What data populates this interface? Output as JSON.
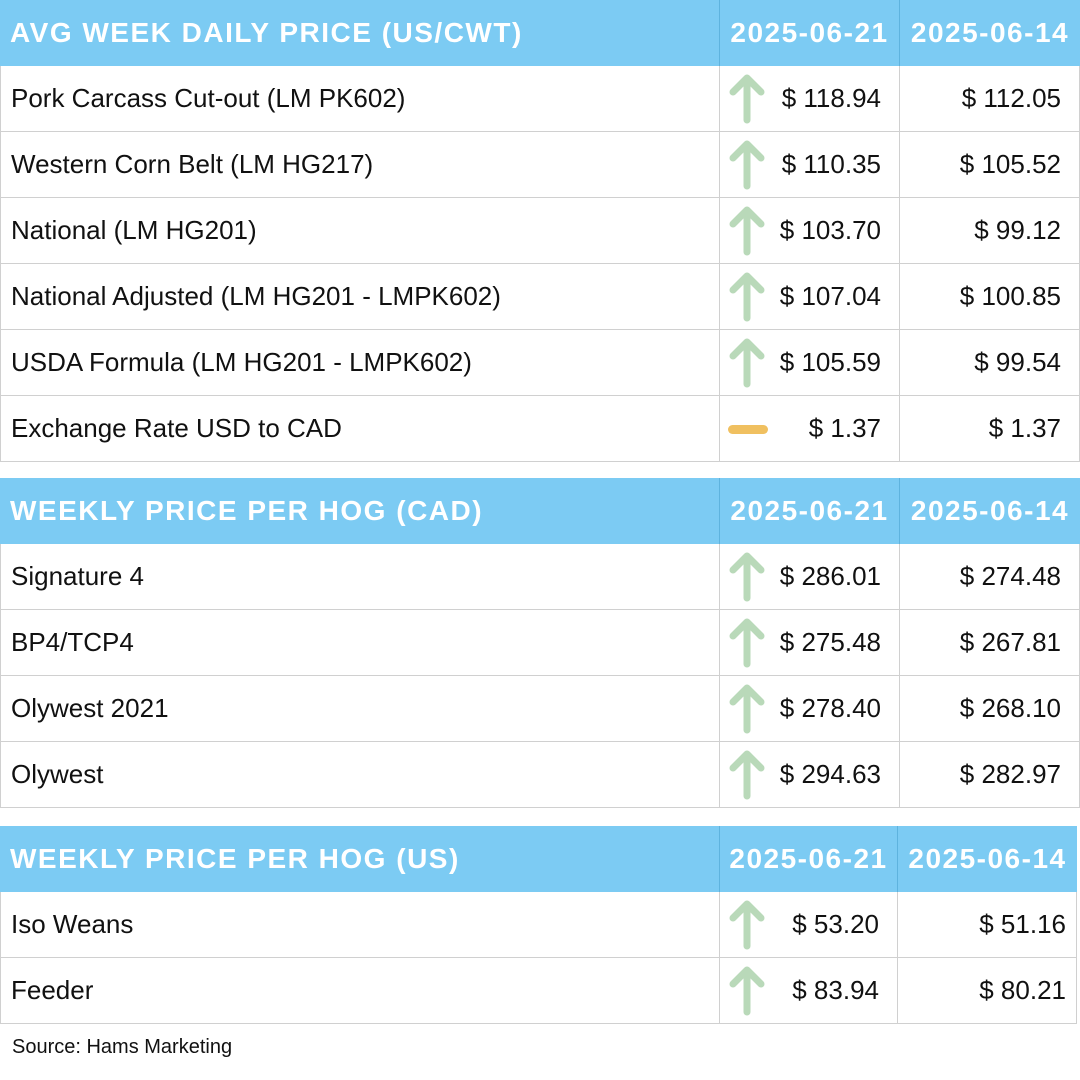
{
  "tables": [
    {
      "title": "AVG WEEK DAILY PRICE (US/CWT)",
      "date_current": "2025-06-21",
      "date_previous": "2025-06-14",
      "rows": [
        {
          "label": "Pork Carcass Cut-out (LM PK602)",
          "current": "$ 118.94",
          "previous": "$ 112.05",
          "trend": "up-arrow-icon"
        },
        {
          "label": "Western Corn Belt (LM HG217)",
          "current": "$ 110.35",
          "previous": "$ 105.52",
          "trend": "up-arrow-icon"
        },
        {
          "label": "National (LM HG201)",
          "current": "$ 103.70",
          "previous": "$ 99.12",
          "trend": "up-arrow-icon"
        },
        {
          "label": "National Adjusted (LM HG201 - LMPK602)",
          "current": "$ 107.04",
          "previous": "$ 100.85",
          "trend": "up-arrow-icon"
        },
        {
          "label": "USDA Formula (LM HG201 - LMPK602)",
          "current": "$ 105.59",
          "previous": "$ 99.54",
          "trend": "up-arrow-icon"
        },
        {
          "label": "Exchange Rate USD to CAD",
          "current": "$ 1.37",
          "previous": "$ 1.37",
          "trend": "flat-dash-icon"
        }
      ]
    },
    {
      "title": "WEEKLY PRICE PER HOG (CAD)",
      "date_current": "2025-06-21",
      "date_previous": "2025-06-14",
      "rows": [
        {
          "label": "Signature 4",
          "current": "$ 286.01",
          "previous": "$ 274.48",
          "trend": "up-arrow-icon"
        },
        {
          "label": "BP4/TCP4",
          "current": "$ 275.48",
          "previous": "$ 267.81",
          "trend": "up-arrow-icon"
        },
        {
          "label": "Olywest 2021",
          "current": "$ 278.40",
          "previous": "$ 268.10",
          "trend": "up-arrow-icon"
        },
        {
          "label": "Olywest",
          "current": "$ 294.63",
          "previous": "$ 282.97",
          "trend": "up-arrow-icon"
        }
      ]
    },
    {
      "title": "WEEKLY PRICE PER HOG (US)",
      "date_current": "2025-06-21",
      "date_previous": "2025-06-14",
      "rows": [
        {
          "label": "Iso Weans",
          "current": "$ 53.20",
          "previous": "$ 51.16",
          "trend": "up-arrow-icon"
        },
        {
          "label": "Feeder",
          "current": "$ 83.94",
          "previous": "$ 80.21",
          "trend": "up-arrow-icon"
        }
      ]
    }
  ],
  "colors": {
    "header_bg": "#7ccbf3",
    "up_arrow": "#b9d9b9",
    "flat_dash": "#f0c060"
  },
  "source": "Source: Hams Marketing"
}
